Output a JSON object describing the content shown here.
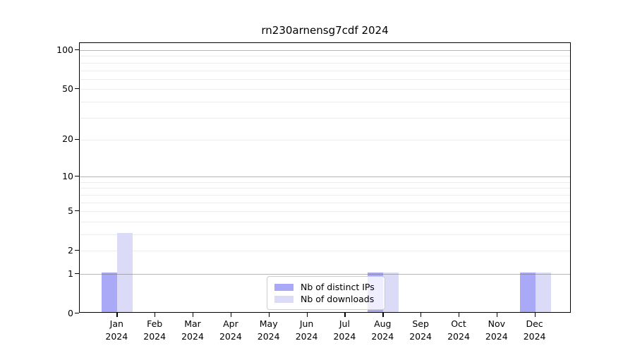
{
  "title": "rn230arnensg7cdf 2024",
  "colors": {
    "distinct_ips_bar": "#a9a9f8",
    "downloads_bar": "#dbdbf8",
    "axis": "#000000",
    "grid_major": "#c0c0c0",
    "grid_minor": "#e9e9e9",
    "legend_border": "#cccccc"
  },
  "legend": {
    "items": [
      {
        "label": "Nb of distinct IPs",
        "color": "#a9a9f8"
      },
      {
        "label": "Nb of downloads",
        "color": "#dbdbf8"
      }
    ]
  },
  "y_axis": {
    "tick_labels": [
      "100",
      "50",
      "20",
      "10",
      "5",
      "2",
      "1",
      "0"
    ],
    "tick_values": [
      100,
      50,
      20,
      10,
      5,
      2,
      1,
      0
    ]
  },
  "x_axis": {
    "year": "2024",
    "months": [
      "Jan",
      "Feb",
      "Mar",
      "Apr",
      "May",
      "Jun",
      "Jul",
      "Aug",
      "Sep",
      "Oct",
      "Nov",
      "Dec"
    ]
  },
  "chart_data": {
    "type": "bar",
    "title": "rn230arnensg7cdf 2024",
    "categories": [
      "Jan 2024",
      "Feb 2024",
      "Mar 2024",
      "Apr 2024",
      "May 2024",
      "Jun 2024",
      "Jul 2024",
      "Aug 2024",
      "Sep 2024",
      "Oct 2024",
      "Nov 2024",
      "Dec 2024"
    ],
    "series": [
      {
        "name": "Nb of distinct IPs",
        "color": "#a9a9f8",
        "values": [
          1,
          0,
          0,
          0,
          0,
          0,
          0,
          1,
          0,
          0,
          0,
          1
        ]
      },
      {
        "name": "Nb of downloads",
        "color": "#dbdbf8",
        "values": [
          3,
          0,
          0,
          0,
          0,
          0,
          0,
          1,
          0,
          0,
          0,
          1
        ]
      }
    ],
    "xlabel": "",
    "ylabel": "",
    "y_scale": "log(1+x)",
    "y_ticks": [
      0,
      1,
      2,
      5,
      10,
      20,
      50,
      100
    ],
    "ylim": [
      0,
      110
    ],
    "grid": "horizontal",
    "legend_position": "bottom-center-inside"
  }
}
